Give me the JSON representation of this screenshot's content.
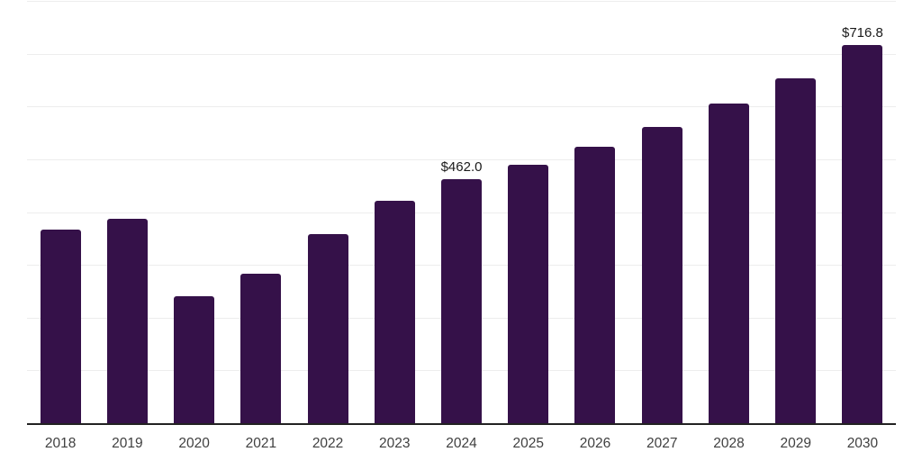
{
  "chart_data": {
    "type": "bar",
    "title": "",
    "xlabel": "",
    "ylabel": "",
    "categories": [
      "2018",
      "2019",
      "2020",
      "2021",
      "2022",
      "2023",
      "2024",
      "2025",
      "2026",
      "2027",
      "2028",
      "2029",
      "2030"
    ],
    "values": [
      366,
      388,
      240,
      283,
      359,
      421,
      462.0,
      489,
      524,
      562,
      605,
      654,
      716.8
    ],
    "value_labels": {
      "2024": "$462.0",
      "2030": "$716.8"
    },
    "ylim": [
      0,
      800
    ],
    "gridline_interval": 100,
    "grid": true,
    "legend_position": "none",
    "y_tick_labels_visible": false,
    "colors": {
      "bar_fill": "#351149",
      "axis_line": "#222222",
      "gridline": "#ededed",
      "tick_label": "#404040",
      "value_label": "#1a1a1a",
      "background": "#ffffff"
    }
  }
}
